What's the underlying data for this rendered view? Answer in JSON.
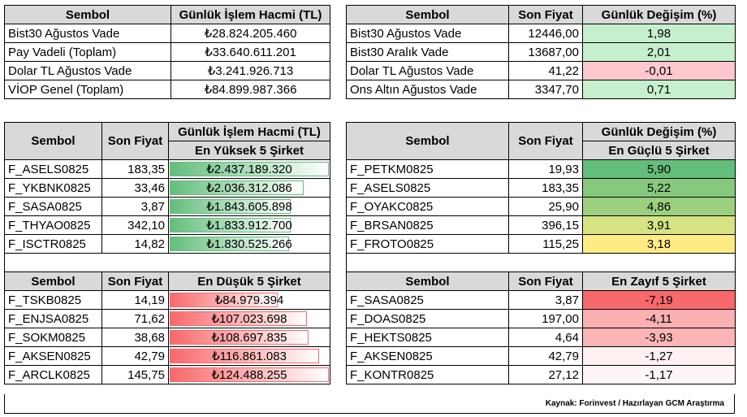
{
  "top_left": {
    "headers": [
      "Sembol",
      "Günlük İşlem Hacmi (TL)"
    ],
    "rows": [
      {
        "symbol": "Bist30 Ağustos Vade",
        "volume": "₺28.824.205.460"
      },
      {
        "symbol": "Pay Vadeli (Toplam)",
        "volume": "₺33.640.611.201"
      },
      {
        "symbol": "Dolar TL Ağustos Vade",
        "volume": "₺3.241.926.713"
      },
      {
        "symbol": "VİOP Genel (Toplam)",
        "volume": "₺84.899.987.366"
      }
    ]
  },
  "top_right": {
    "headers": [
      "Sembol",
      "Son Fiyat",
      "Günlük Değişim (%)"
    ],
    "rows": [
      {
        "symbol": "Bist30 Ağustos Vade",
        "price": "12446,00",
        "change": "1,98",
        "color": "#c6efce"
      },
      {
        "symbol": "Bist30 Aralık Vade",
        "price": "13687,00",
        "change": "2,01",
        "color": "#c6efce"
      },
      {
        "symbol": "Dolar TL Ağustos Vade",
        "price": "41,22",
        "change": "-0,01",
        "color": "#ffc7ce"
      },
      {
        "symbol": "Ons Altın Ağustos Vade",
        "price": "3347,70",
        "change": "0,71",
        "color": "#c6efce"
      }
    ]
  },
  "volume_high": {
    "headers": [
      "Sembol",
      "Son Fiyat",
      "Günlük İşlem Hacmi (TL)"
    ],
    "subheader": "En Yüksek 5 Şirket",
    "rows": [
      {
        "symbol": "F_ASELS0825",
        "price": "183,35",
        "volume": "₺2.437.189.320",
        "ratio": 1.0
      },
      {
        "symbol": "F_YKBNK0825",
        "price": "33,46",
        "volume": "₺2.036.312.086",
        "ratio": 0.84
      },
      {
        "symbol": "F_SASA0825",
        "price": "3,87",
        "volume": "₺1.843.605.898",
        "ratio": 0.76
      },
      {
        "symbol": "F_THYAO0825",
        "price": "342,10",
        "volume": "₺1.833.912.700",
        "ratio": 0.76
      },
      {
        "symbol": "F_ISCTR0825",
        "price": "14,82",
        "volume": "₺1.830.525.266",
        "ratio": 0.75
      }
    ]
  },
  "change_high": {
    "headers": [
      "Sembol",
      "Son Fiyat",
      "Günlük Değişim (%)"
    ],
    "subheader": "En Güçlü 5 Şirket",
    "rows": [
      {
        "symbol": "F_PETKM0825",
        "price": "19,93",
        "change": "5,90",
        "color": "#63be7b"
      },
      {
        "symbol": "F_ASELS0825",
        "price": "183,35",
        "change": "5,22",
        "color": "#86c97e"
      },
      {
        "symbol": "F_OYAKC0825",
        "price": "25,90",
        "change": "4,86",
        "color": "#9cd080"
      },
      {
        "symbol": "F_BRSAN0825",
        "price": "396,15",
        "change": "3,91",
        "color": "#d6e383"
      },
      {
        "symbol": "F_FROTO0825",
        "price": "115,25",
        "change": "3,18",
        "color": "#ffeb84"
      }
    ]
  },
  "volume_low": {
    "headers": [
      "Sembol",
      "Son Fiyat",
      "En Düşük 5 Şirket"
    ],
    "rows": [
      {
        "symbol": "F_TSKB0825",
        "price": "14,19",
        "volume": "₺84.979.394",
        "ratio": 0.68
      },
      {
        "symbol": "F_ENJSA0825",
        "price": "71,62",
        "volume": "₺107.023.698",
        "ratio": 0.86
      },
      {
        "symbol": "F_SOKM0825",
        "price": "38,68",
        "volume": "₺108.697.835",
        "ratio": 0.87
      },
      {
        "symbol": "F_AKSEN0825",
        "price": "42,79",
        "volume": "₺116.861.083",
        "ratio": 0.94
      },
      {
        "symbol": "F_ARCLK0825",
        "price": "145,75",
        "volume": "₺124.488.255",
        "ratio": 1.0
      }
    ]
  },
  "change_low": {
    "headers": [
      "Sembol",
      "Son Fiyat",
      "En Zayıf 5 Şirket"
    ],
    "rows": [
      {
        "symbol": "F_SASA0825",
        "price": "3,87",
        "change": "-7,19",
        "color": "#f8696b"
      },
      {
        "symbol": "F_DOAS0825",
        "price": "197,00",
        "change": "-4,11",
        "color": "#fbb0b1"
      },
      {
        "symbol": "F_HEKTS0825",
        "price": "4,64",
        "change": "-3,93",
        "color": "#fbb5b6"
      },
      {
        "symbol": "F_AKSEN0825",
        "price": "42,79",
        "change": "-1,27",
        "color": "#fdf1f2"
      },
      {
        "symbol": "F_KONTR0825",
        "price": "27,12",
        "change": "-1,17",
        "color": "#fdf5f6"
      }
    ]
  },
  "source": "Kaynak: Forinvest / Hazırlayan GCM Araştırma"
}
